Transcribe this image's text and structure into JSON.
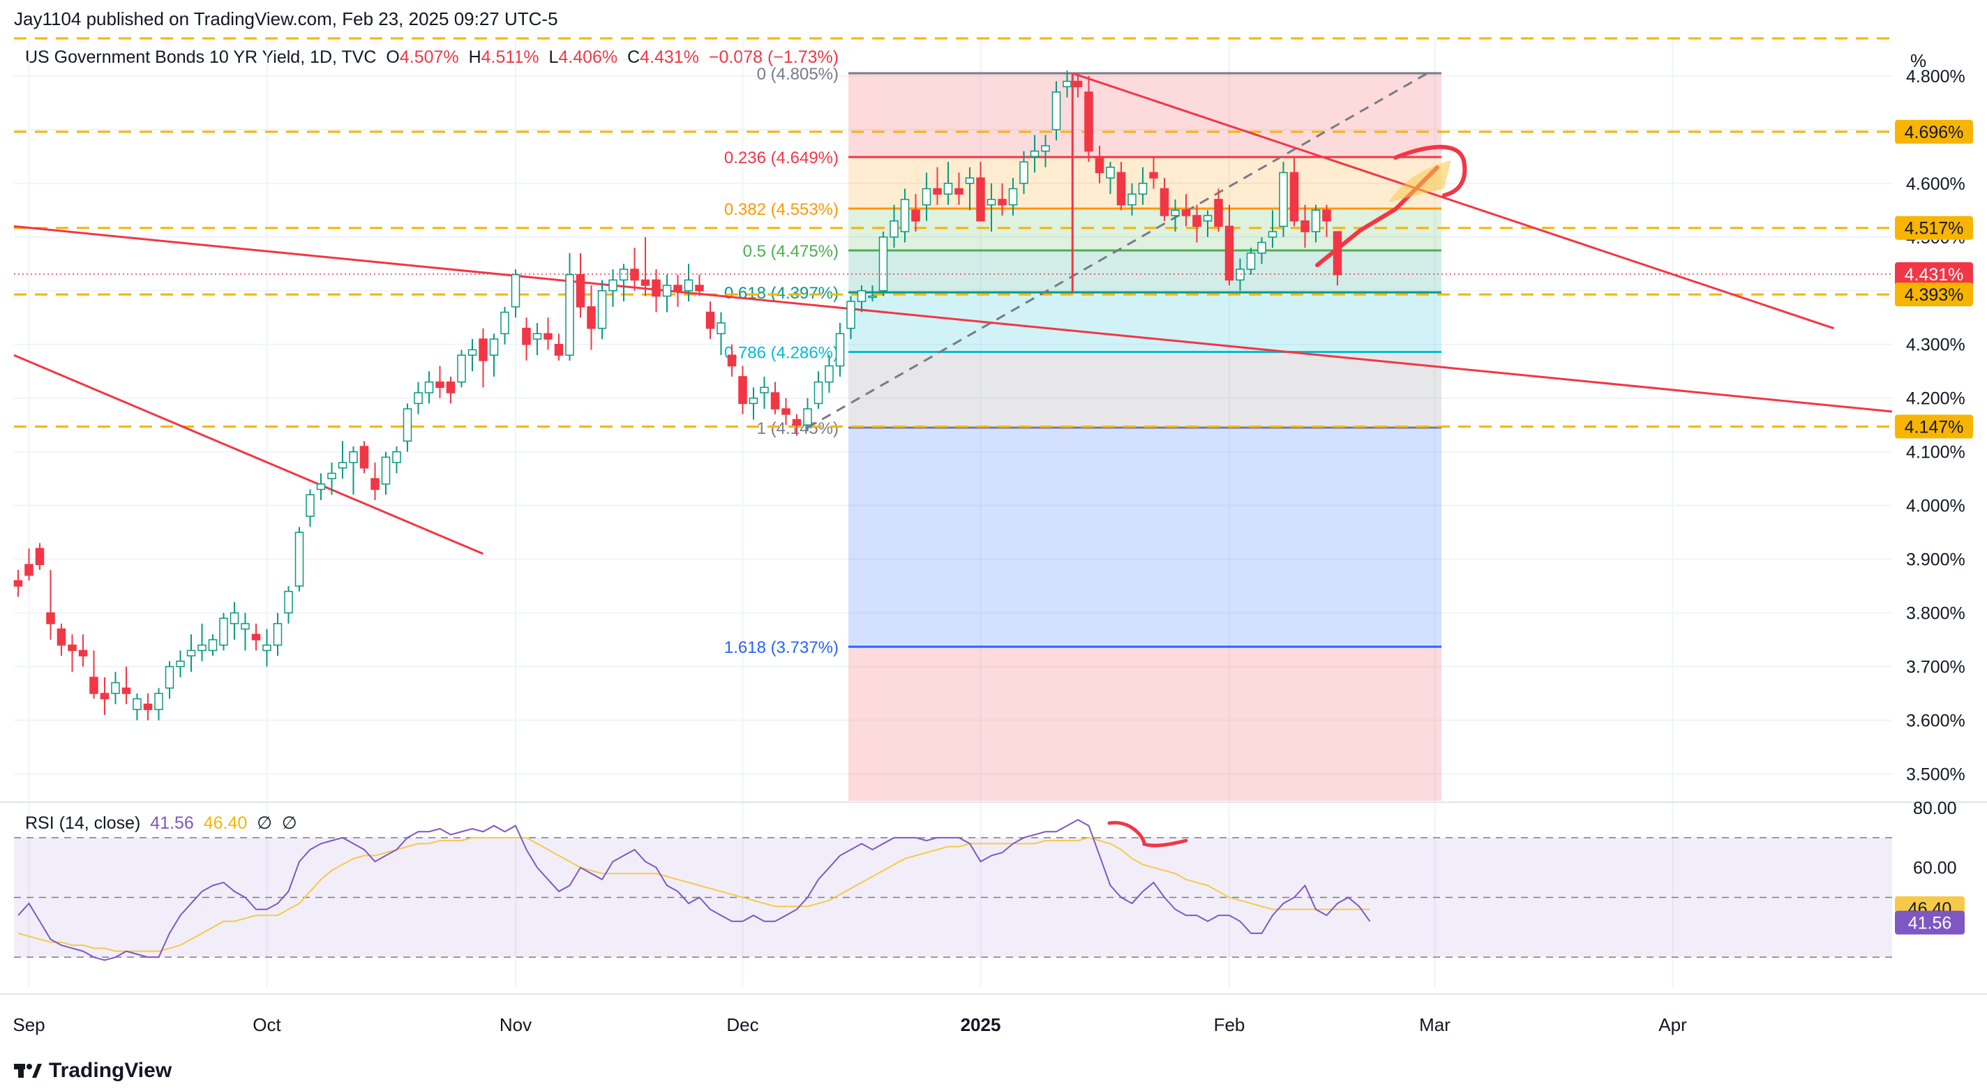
{
  "header": {
    "published": "Jay1104 published on TradingView.com, Feb 23, 2025 09:27 UTC-5"
  },
  "legend": {
    "symbol": "US Government Bonds 10 YR Yield, 1D, TVC",
    "open_label": "O",
    "open": "4.507%",
    "high_label": "H",
    "high": "4.511%",
    "low_label": "L",
    "low": "4.406%",
    "close_label": "C",
    "close": "4.431%",
    "change": "−0.078 (−1.73%)"
  },
  "unit_label": "%",
  "rsi_legend": {
    "title": "RSI (14, close)",
    "rsi": "41.56",
    "ma": "46.40",
    "s1": "∅",
    "s2": "∅"
  },
  "footer": {
    "brand": "TradingView"
  },
  "colors": {
    "up": "#089981",
    "down": "#f23645",
    "dashed": "#f7b500",
    "rsi": "#7e57c2",
    "rsi_ma": "#f7c948"
  },
  "chart_data": {
    "type": "candlestick",
    "ylim": [
      3.45,
      4.87
    ],
    "y_ticks": [
      "3.500%",
      "3.600%",
      "3.700%",
      "3.800%",
      "3.900%",
      "4.000%",
      "4.100%",
      "4.200%",
      "4.300%",
      "4.400%",
      "4.500%",
      "4.600%",
      "4.700%",
      "4.800%"
    ],
    "x_labels": [
      {
        "label": "Sep",
        "i": 1
      },
      {
        "label": "Oct",
        "i": 23
      },
      {
        "label": "Nov",
        "i": 46
      },
      {
        "label": "Dec",
        "i": 67
      },
      {
        "label": "2025",
        "i": 89
      },
      {
        "label": "Feb",
        "i": 112
      },
      {
        "label": "Mar",
        "i": 131
      },
      {
        "label": "Apr",
        "i": 153
      }
    ],
    "candles": [
      [
        3.86,
        3.88,
        3.83,
        3.85
      ],
      [
        3.89,
        3.92,
        3.86,
        3.87
      ],
      [
        3.92,
        3.93,
        3.88,
        3.89
      ],
      [
        3.8,
        3.88,
        3.75,
        3.78
      ],
      [
        3.77,
        3.78,
        3.72,
        3.74
      ],
      [
        3.74,
        3.76,
        3.69,
        3.73
      ],
      [
        3.73,
        3.76,
        3.7,
        3.72
      ],
      [
        3.68,
        3.73,
        3.64,
        3.65
      ],
      [
        3.65,
        3.68,
        3.61,
        3.64
      ],
      [
        3.65,
        3.69,
        3.63,
        3.67
      ],
      [
        3.66,
        3.7,
        3.63,
        3.65
      ],
      [
        3.62,
        3.65,
        3.6,
        3.64
      ],
      [
        3.63,
        3.65,
        3.6,
        3.62
      ],
      [
        3.62,
        3.66,
        3.6,
        3.65
      ],
      [
        3.66,
        3.71,
        3.64,
        3.7
      ],
      [
        3.7,
        3.73,
        3.68,
        3.71
      ],
      [
        3.72,
        3.76,
        3.69,
        3.73
      ],
      [
        3.73,
        3.78,
        3.71,
        3.74
      ],
      [
        3.73,
        3.76,
        3.72,
        3.75
      ],
      [
        3.74,
        3.8,
        3.73,
        3.79
      ],
      [
        3.78,
        3.82,
        3.75,
        3.8
      ],
      [
        3.77,
        3.8,
        3.73,
        3.78
      ],
      [
        3.76,
        3.78,
        3.73,
        3.75
      ],
      [
        3.73,
        3.77,
        3.7,
        3.74
      ],
      [
        3.74,
        3.8,
        3.72,
        3.78
      ],
      [
        3.8,
        3.85,
        3.78,
        3.84
      ],
      [
        3.85,
        3.96,
        3.84,
        3.95
      ],
      [
        3.98,
        4.03,
        3.96,
        4.02
      ],
      [
        4.03,
        4.06,
        4.01,
        4.04
      ],
      [
        4.05,
        4.08,
        4.02,
        4.06
      ],
      [
        4.07,
        4.12,
        4.05,
        4.08
      ],
      [
        4.08,
        4.11,
        4.02,
        4.1
      ],
      [
        4.11,
        4.12,
        4.06,
        4.07
      ],
      [
        4.05,
        4.08,
        4.01,
        4.03
      ],
      [
        4.04,
        4.1,
        4.02,
        4.09
      ],
      [
        4.08,
        4.11,
        4.06,
        4.1
      ],
      [
        4.12,
        4.19,
        4.1,
        4.18
      ],
      [
        4.19,
        4.23,
        4.17,
        4.21
      ],
      [
        4.21,
        4.25,
        4.19,
        4.23
      ],
      [
        4.23,
        4.26,
        4.2,
        4.22
      ],
      [
        4.23,
        4.24,
        4.19,
        4.21
      ],
      [
        4.23,
        4.29,
        4.22,
        4.28
      ],
      [
        4.28,
        4.31,
        4.25,
        4.29
      ],
      [
        4.31,
        4.33,
        4.22,
        4.27
      ],
      [
        4.28,
        4.32,
        4.24,
        4.31
      ],
      [
        4.32,
        4.37,
        4.3,
        4.36
      ],
      [
        4.37,
        4.44,
        4.35,
        4.43
      ],
      [
        4.33,
        4.35,
        4.27,
        4.3
      ],
      [
        4.31,
        4.34,
        4.28,
        4.32
      ],
      [
        4.32,
        4.35,
        4.29,
        4.31
      ],
      [
        4.3,
        4.32,
        4.27,
        4.28
      ],
      [
        4.28,
        4.47,
        4.27,
        4.43
      ],
      [
        4.43,
        4.47,
        4.35,
        4.37
      ],
      [
        4.37,
        4.41,
        4.29,
        4.33
      ],
      [
        4.33,
        4.42,
        4.31,
        4.4
      ],
      [
        4.4,
        4.44,
        4.37,
        4.42
      ],
      [
        4.42,
        4.45,
        4.38,
        4.44
      ],
      [
        4.44,
        4.48,
        4.4,
        4.42
      ],
      [
        4.42,
        4.5,
        4.39,
        4.41
      ],
      [
        4.42,
        4.44,
        4.36,
        4.39
      ],
      [
        4.39,
        4.43,
        4.36,
        4.41
      ],
      [
        4.41,
        4.43,
        4.37,
        4.4
      ],
      [
        4.4,
        4.45,
        4.38,
        4.42
      ],
      [
        4.41,
        4.43,
        4.39,
        4.4
      ],
      [
        4.36,
        4.38,
        4.31,
        4.33
      ],
      [
        4.32,
        4.36,
        4.28,
        4.34
      ],
      [
        4.28,
        4.3,
        4.24,
        4.26
      ],
      [
        4.24,
        4.26,
        4.17,
        4.19
      ],
      [
        4.19,
        4.22,
        4.16,
        4.2
      ],
      [
        4.21,
        4.24,
        4.18,
        4.22
      ],
      [
        4.21,
        4.23,
        4.17,
        4.18
      ],
      [
        4.18,
        4.2,
        4.15,
        4.17
      ],
      [
        4.16,
        4.17,
        4.13,
        4.15
      ],
      [
        4.15,
        4.2,
        4.14,
        4.18
      ],
      [
        4.19,
        4.25,
        4.18,
        4.23
      ],
      [
        4.23,
        4.28,
        4.21,
        4.26
      ],
      [
        4.26,
        4.34,
        4.24,
        4.32
      ],
      [
        4.33,
        4.39,
        4.31,
        4.38
      ],
      [
        4.38,
        4.41,
        4.36,
        4.4
      ],
      [
        4.39,
        4.41,
        4.38,
        4.39
      ],
      [
        4.4,
        4.51,
        4.39,
        4.5
      ],
      [
        4.5,
        4.56,
        4.48,
        4.53
      ],
      [
        4.51,
        4.59,
        4.49,
        4.57
      ],
      [
        4.55,
        4.58,
        4.51,
        4.53
      ],
      [
        4.56,
        4.62,
        4.53,
        4.59
      ],
      [
        4.59,
        4.63,
        4.56,
        4.58
      ],
      [
        4.58,
        4.64,
        4.56,
        4.6
      ],
      [
        4.59,
        4.62,
        4.56,
        4.58
      ],
      [
        4.6,
        4.63,
        4.55,
        4.61
      ],
      [
        4.61,
        4.64,
        4.53,
        4.53
      ],
      [
        4.56,
        4.6,
        4.51,
        4.57
      ],
      [
        4.57,
        4.6,
        4.54,
        4.56
      ],
      [
        4.56,
        4.61,
        4.54,
        4.59
      ],
      [
        4.6,
        4.66,
        4.58,
        4.64
      ],
      [
        4.65,
        4.69,
        4.62,
        4.66
      ],
      [
        4.66,
        4.69,
        4.63,
        4.67
      ],
      [
        4.7,
        4.79,
        4.68,
        4.77
      ],
      [
        4.78,
        4.81,
        4.76,
        4.79
      ],
      [
        4.79,
        4.8,
        4.76,
        4.78
      ],
      [
        4.77,
        4.8,
        4.64,
        4.66
      ],
      [
        4.65,
        4.67,
        4.6,
        4.62
      ],
      [
        4.61,
        4.64,
        4.58,
        4.63
      ],
      [
        4.62,
        4.64,
        4.55,
        4.56
      ],
      [
        4.56,
        4.6,
        4.54,
        4.58
      ],
      [
        4.58,
        4.63,
        4.56,
        4.6
      ],
      [
        4.62,
        4.65,
        4.59,
        4.61
      ],
      [
        4.59,
        4.61,
        4.53,
        4.54
      ],
      [
        4.54,
        4.57,
        4.51,
        4.55
      ],
      [
        4.55,
        4.58,
        4.52,
        4.54
      ],
      [
        4.54,
        4.56,
        4.49,
        4.52
      ],
      [
        4.53,
        4.55,
        4.5,
        4.54
      ],
      [
        4.57,
        4.59,
        4.51,
        4.52
      ],
      [
        4.52,
        4.56,
        4.41,
        4.42
      ],
      [
        4.42,
        4.46,
        4.4,
        4.44
      ],
      [
        4.44,
        4.48,
        4.43,
        4.47
      ],
      [
        4.47,
        4.5,
        4.45,
        4.49
      ],
      [
        4.5,
        4.55,
        4.48,
        4.51
      ],
      [
        4.52,
        4.64,
        4.5,
        4.62
      ],
      [
        4.62,
        4.65,
        4.52,
        4.53
      ],
      [
        4.53,
        4.56,
        4.48,
        4.51
      ],
      [
        4.51,
        4.56,
        4.49,
        4.55
      ],
      [
        4.55,
        4.56,
        4.5,
        4.53
      ],
      [
        4.51,
        4.51,
        4.41,
        4.43
      ]
    ],
    "fib": [
      {
        "label": "0 (4.805%)",
        "level": 4.805,
        "color": "#787b86"
      },
      {
        "label": "0.236 (4.649%)",
        "level": 4.649,
        "color": "#f23645"
      },
      {
        "label": "0.382 (4.553%)",
        "level": 4.553,
        "color": "#ff9800"
      },
      {
        "label": "0.5 (4.475%)",
        "level": 4.475,
        "color": "#4caf50"
      },
      {
        "label": "0.618 (4.397%)",
        "level": 4.397,
        "color": "#089981"
      },
      {
        "label": "0.786 (4.286%)",
        "level": 4.286,
        "color": "#00bcd4"
      },
      {
        "label": "1 (4.145%)",
        "level": 4.145,
        "color": "#787b86"
      },
      {
        "label": "1.618 (3.737%)",
        "level": 3.737,
        "color": "#2962ff"
      }
    ],
    "dashed_levels": [
      4.87,
      4.696,
      4.517,
      4.393,
      4.147
    ],
    "price_badges": [
      {
        "label": "4.696%",
        "level": 4.696,
        "bg": "#f7b500",
        "fg": "#131722"
      },
      {
        "label": "4.517%",
        "level": 4.517,
        "bg": "#f7b500",
        "fg": "#131722"
      },
      {
        "label": "4.431%",
        "level": 4.431,
        "bg": "#f23645",
        "fg": "#ffffff"
      },
      {
        "label": "4.393%",
        "level": 4.393,
        "bg": "#f7b500",
        "fg": "#131722"
      },
      {
        "label": "4.147%",
        "level": 4.147,
        "bg": "#f7b500",
        "fg": "#131722"
      }
    ],
    "rsi": {
      "ylim": [
        20,
        80
      ],
      "y_ticks": [
        "80.00",
        "60.00"
      ],
      "bands": [
        70,
        50,
        30
      ],
      "values": [
        44,
        48,
        42,
        36,
        34,
        33,
        32,
        30,
        29,
        30,
        32,
        31,
        30,
        30,
        38,
        44,
        48,
        52,
        54,
        55,
        52,
        50,
        46,
        46,
        48,
        52,
        62,
        66,
        68,
        69,
        70,
        68,
        66,
        62,
        64,
        66,
        70,
        72,
        72,
        73,
        71,
        72,
        73,
        72,
        74,
        72,
        74,
        66,
        60,
        56,
        52,
        54,
        60,
        58,
        56,
        62,
        64,
        66,
        62,
        60,
        54,
        52,
        48,
        50,
        46,
        44,
        42,
        42,
        44,
        42,
        42,
        44,
        46,
        50,
        56,
        60,
        64,
        66,
        68,
        66,
        68,
        70,
        70,
        70,
        69,
        70,
        70,
        70,
        68,
        62,
        64,
        65,
        68,
        70,
        71,
        72,
        72,
        74,
        76,
        74,
        64,
        54,
        50,
        48,
        52,
        55,
        50,
        46,
        44,
        44,
        42,
        44,
        44,
        42,
        38,
        38,
        44,
        48,
        50,
        54,
        46,
        44,
        48,
        50,
        47,
        42
      ],
      "ma": [
        38,
        37,
        36,
        35,
        35,
        34,
        34,
        33,
        33,
        32,
        32,
        32,
        32,
        32,
        33,
        34,
        36,
        38,
        40,
        42,
        42,
        43,
        44,
        44,
        44,
        46,
        48,
        52,
        56,
        59,
        61,
        63,
        64,
        64,
        65,
        66,
        67,
        68,
        68,
        69,
        69,
        69,
        70,
        70,
        70,
        70,
        70,
        70,
        68,
        66,
        64,
        62,
        60,
        59,
        58,
        58,
        58,
        58,
        58,
        58,
        57,
        56,
        55,
        54,
        53,
        52,
        51,
        50,
        49,
        48,
        47,
        47,
        47,
        47,
        48,
        49,
        51,
        53,
        55,
        57,
        59,
        61,
        63,
        64,
        65,
        66,
        67,
        67,
        68,
        68,
        68,
        68,
        68,
        68,
        68,
        69,
        69,
        69,
        69,
        70,
        69,
        68,
        66,
        63,
        61,
        60,
        59,
        58,
        56,
        55,
        54,
        52,
        50,
        49,
        48,
        47,
        46,
        46,
        46,
        46,
        46,
        46,
        46,
        46,
        46,
        46
      ],
      "badges": [
        {
          "label": "46.40",
          "value": 46.4,
          "bg": "#f7c948",
          "fg": "#131722"
        },
        {
          "label": "41.56",
          "value": 41.56,
          "bg": "#7e57c2",
          "fg": "#ffffff"
        }
      ]
    }
  }
}
